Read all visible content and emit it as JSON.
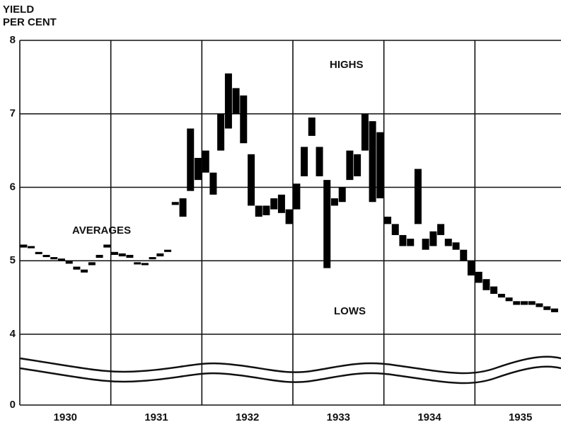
{
  "chart_data": {
    "type": "range_bar",
    "ylabel": [
      "YIELD",
      "PER CENT"
    ],
    "annotations": [
      "HIGHS",
      "AVERAGES",
      "LOWS"
    ],
    "categories": [
      "1930",
      "1931",
      "1932",
      "1933",
      "1934",
      "1935"
    ],
    "xlim": [
      1930,
      1936
    ],
    "xticks": [
      1931,
      1932,
      1933,
      1934,
      1935
    ],
    "ylim": [
      0,
      8
    ],
    "axis_break": [
      0,
      4
    ],
    "yticks": [
      0,
      4,
      5,
      6,
      7,
      8
    ],
    "grid": true,
    "color": "#000000",
    "x": [
      1930.042,
      1930.125,
      1930.208,
      1930.292,
      1930.375,
      1930.458,
      1930.542,
      1930.625,
      1930.708,
      1930.792,
      1930.875,
      1930.958,
      1931.042,
      1931.125,
      1931.208,
      1931.292,
      1931.375,
      1931.458,
      1931.542,
      1931.625,
      1931.708,
      1931.792,
      1931.875,
      1931.958,
      1932.042,
      1932.125,
      1932.208,
      1932.292,
      1932.375,
      1932.458,
      1932.542,
      1932.625,
      1932.708,
      1932.792,
      1932.875,
      1932.958,
      1933.042,
      1933.125,
      1933.208,
      1933.292,
      1933.375,
      1933.458,
      1933.542,
      1933.625,
      1933.708,
      1933.792,
      1933.875,
      1933.958,
      1934.042,
      1934.125,
      1934.208,
      1934.292,
      1934.375,
      1934.458,
      1934.542,
      1934.625,
      1934.708,
      1934.792,
      1934.875,
      1934.958,
      1935.042,
      1935.125,
      1935.208,
      1935.292,
      1935.375,
      1935.458,
      1935.542,
      1935.625,
      1935.708,
      1935.792,
      1935.875
    ],
    "highs": [
      5.22,
      5.2,
      5.12,
      5.08,
      5.05,
      5.03,
      5.0,
      4.92,
      4.88,
      4.98,
      5.08,
      5.22,
      5.12,
      5.1,
      5.08,
      4.98,
      4.97,
      5.05,
      5.1,
      5.15,
      5.8,
      5.85,
      6.8,
      6.4,
      6.5,
      6.2,
      7.0,
      7.55,
      7.35,
      7.25,
      6.45,
      5.75,
      5.75,
      5.85,
      5.9,
      5.7,
      6.05,
      6.55,
      6.95,
      6.55,
      6.1,
      5.85,
      6.0,
      6.5,
      6.45,
      7.0,
      6.9,
      6.75,
      5.6,
      5.5,
      5.35,
      5.3,
      6.25,
      5.3,
      5.4,
      5.5,
      5.3,
      5.25,
      5.15,
      5.0,
      4.85,
      4.75,
      4.65,
      4.55,
      4.5,
      4.45,
      4.45,
      4.45,
      4.42,
      4.38,
      4.35
    ],
    "lows": [
      5.18,
      5.17,
      5.09,
      5.05,
      5.02,
      5.0,
      4.96,
      4.88,
      4.84,
      4.94,
      5.04,
      5.18,
      5.08,
      5.06,
      5.04,
      4.95,
      4.94,
      5.02,
      5.06,
      5.12,
      5.76,
      5.6,
      5.95,
      6.1,
      6.2,
      5.9,
      6.5,
      6.8,
      7.0,
      6.6,
      5.75,
      5.6,
      5.62,
      5.7,
      5.65,
      5.5,
      5.7,
      6.15,
      6.7,
      6.15,
      4.9,
      5.75,
      5.8,
      6.1,
      6.15,
      6.5,
      5.8,
      5.85,
      5.5,
      5.35,
      5.2,
      5.2,
      5.5,
      5.15,
      5.2,
      5.35,
      5.2,
      5.15,
      5.0,
      4.8,
      4.7,
      4.6,
      4.55,
      4.5,
      4.45,
      4.4,
      4.4,
      4.4,
      4.37,
      4.33,
      4.3
    ]
  }
}
